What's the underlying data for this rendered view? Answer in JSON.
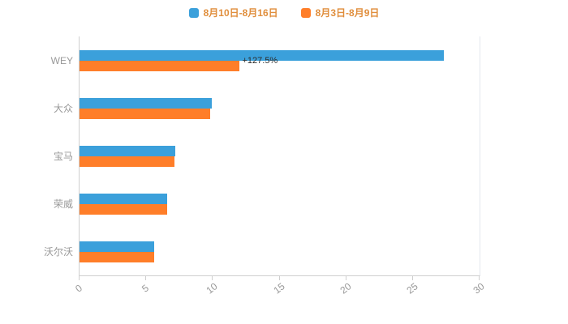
{
  "colors": {
    "series_blue": "#3BA0DB",
    "series_orange": "#FF7E29",
    "legend_text": "#E08E3C",
    "axis_line": "#cfcfcf",
    "axis_label": "#999999"
  },
  "legend": {
    "items": [
      {
        "label": "8月10日-8月16日",
        "color": "#3BA0DB"
      },
      {
        "label": "8月3日-8月9日",
        "color": "#FF7E29"
      }
    ]
  },
  "chart_data": {
    "type": "bar",
    "orientation": "horizontal",
    "title": "",
    "xlabel": "",
    "ylabel": "",
    "categories": [
      "WEY",
      "大众",
      "宝马",
      "荣威",
      "沃尔沃"
    ],
    "series": [
      {
        "name": "8月10日-8月16日",
        "color": "#3BA0DB",
        "values": [
          27.3,
          9.9,
          7.2,
          6.6,
          5.6
        ]
      },
      {
        "name": "8月3日-8月9日",
        "color": "#FF7E29",
        "values": [
          12.0,
          9.8,
          7.1,
          6.6,
          5.6
        ]
      }
    ],
    "xlim": [
      0,
      30
    ],
    "xticks": [
      0,
      5,
      10,
      15,
      20,
      25,
      30
    ],
    "grid": false,
    "legend_position": "top-center",
    "annotations": [
      {
        "text": "+127.5%",
        "category_index": 0,
        "x": 12.2
      }
    ]
  }
}
